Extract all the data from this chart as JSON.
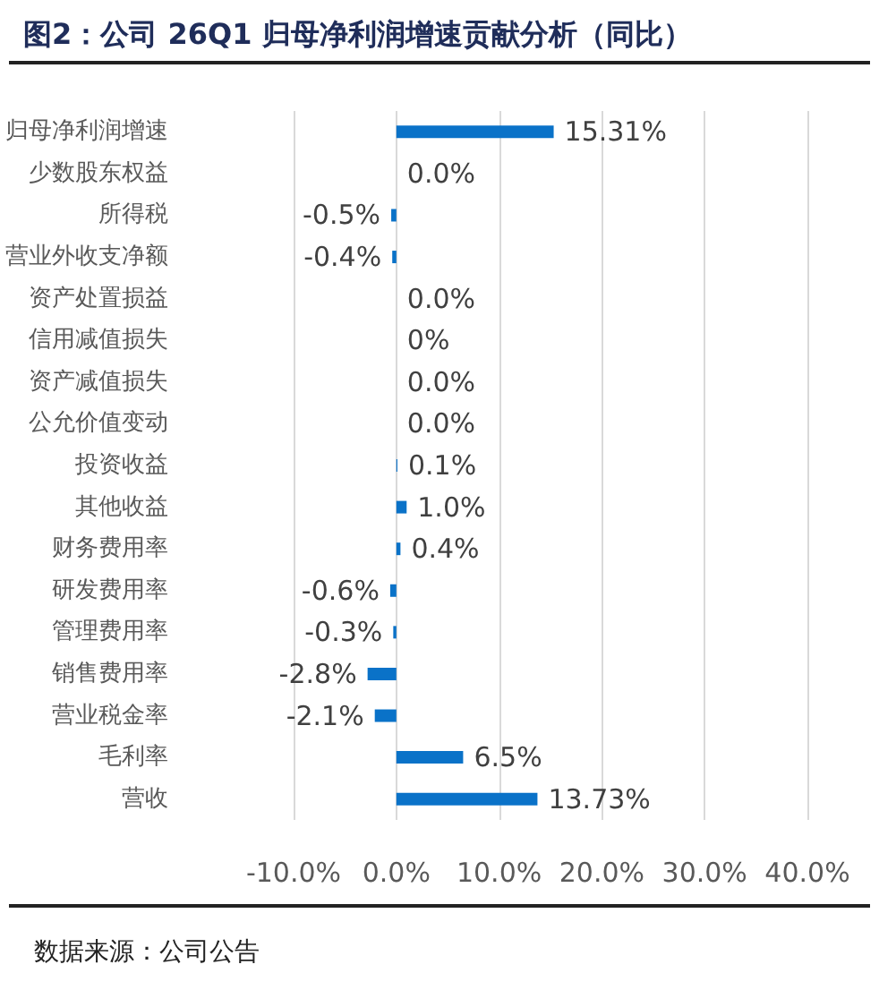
{
  "chart_data": {
    "type": "bar",
    "orientation": "horizontal",
    "title": "图2：公司 26Q1 归母净利润增速贡献分析（同比）",
    "categories": [
      "归母净利润增速",
      "少数股东权益",
      "所得税",
      "营业外收支净额",
      "资产处置损益",
      "信用减值损失",
      "资产减值损失",
      "公允价值变动",
      "投资收益",
      "其他收益",
      "财务费用率",
      "研发费用率",
      "管理费用率",
      "销售费用率",
      "营业税金率",
      "毛利率",
      "营收"
    ],
    "values": [
      15.31,
      0.0,
      -0.5,
      -0.4,
      0.0,
      0,
      0.0,
      0.0,
      0.1,
      1.0,
      0.4,
      -0.6,
      -0.3,
      -2.8,
      -2.1,
      6.5,
      13.73
    ],
    "value_labels": [
      "15.31%",
      "0.0%",
      "-0.5%",
      "-0.4%",
      "0.0%",
      "0%",
      "0.0%",
      "0.0%",
      "0.1%",
      "1.0%",
      "0.4%",
      "-0.6%",
      "-0.3%",
      "-2.8%",
      "-2.1%",
      "6.5%",
      "13.73%"
    ],
    "color": "#0a72c8",
    "xlim": [
      -10,
      40
    ],
    "xticks": [
      {
        "value": -10,
        "label": "-10.0%"
      },
      {
        "value": 0,
        "label": "0.0%"
      },
      {
        "value": 10,
        "label": "10.0%"
      },
      {
        "value": 20,
        "label": "20.0%"
      },
      {
        "value": 30,
        "label": "30.0%"
      },
      {
        "value": 40,
        "label": "40.0%"
      }
    ],
    "grid": "x",
    "annotations": [
      "数据来源：公司公告"
    ]
  }
}
